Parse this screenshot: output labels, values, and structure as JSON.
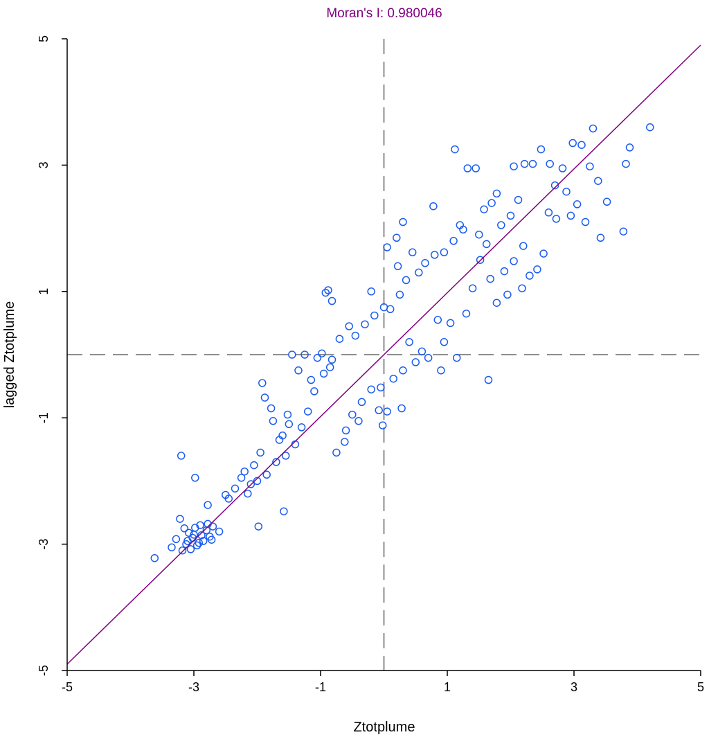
{
  "chart_data": {
    "type": "scatter",
    "title": "Moran's I: 0.980046",
    "xlabel": "Ztotplume",
    "ylabel": "lagged Ztotplume",
    "xlim": [
      -5,
      5
    ],
    "ylim": [
      -5,
      5
    ],
    "xticks": [
      -5,
      -3,
      -1,
      1,
      3,
      5
    ],
    "yticks": [
      -5,
      -3,
      -1,
      1,
      3,
      5
    ],
    "xtick_labels": [
      "-5",
      "-3",
      "-1",
      "1",
      "3",
      "5"
    ],
    "ytick_labels": [
      "-5",
      "-3",
      "-1",
      "1",
      "3",
      "5"
    ],
    "reference_lines": {
      "vertical_x": 0,
      "horizontal_y": 0,
      "style": "dashed"
    },
    "regression_line": {
      "slope": 0.98,
      "intercept": 0
    },
    "grid": false,
    "colors": {
      "points": "#1a5cf0",
      "line": "#800080",
      "title": "#800080",
      "ref": "#7f7f7f",
      "axis": "#000000"
    },
    "points": [
      [
        -3.62,
        -3.22
      ],
      [
        -3.35,
        -3.05
      ],
      [
        -3.28,
        -2.92
      ],
      [
        -3.22,
        -2.6
      ],
      [
        -3.18,
        -3.1
      ],
      [
        -3.15,
        -2.75
      ],
      [
        -3.1,
        -2.95
      ],
      [
        -3.05,
        -3.08
      ],
      [
        -3.0,
        -2.85
      ],
      [
        -2.95,
        -3.02
      ],
      [
        -2.9,
        -2.7
      ],
      [
        -2.85,
        -2.95
      ],
      [
        -2.8,
        -2.78
      ],
      [
        -2.75,
        -2.88
      ],
      [
        -2.7,
        -2.72
      ],
      [
        -2.6,
        -2.8
      ],
      [
        -2.92,
        -2.98
      ],
      [
        -3.08,
        -2.82
      ],
      [
        -2.98,
        -2.74
      ],
      [
        -2.72,
        -2.93
      ],
      [
        -3.12,
        -3.0
      ],
      [
        -2.88,
        -2.86
      ],
      [
        -2.78,
        -2.68
      ],
      [
        -3.02,
        -2.9
      ],
      [
        -3.2,
        -1.6
      ],
      [
        -2.98,
        -1.95
      ],
      [
        -2.5,
        -2.22
      ],
      [
        -2.78,
        -2.38
      ],
      [
        -1.98,
        -2.72
      ],
      [
        -1.58,
        -2.48
      ],
      [
        -2.45,
        -2.28
      ],
      [
        -2.35,
        -2.12
      ],
      [
        -2.2,
        -1.85
      ],
      [
        -2.1,
        -2.05
      ],
      [
        -1.92,
        -0.45
      ],
      [
        -1.88,
        -0.68
      ],
      [
        -1.75,
        -1.05
      ],
      [
        -1.6,
        -1.28
      ],
      [
        -1.78,
        -0.85
      ],
      [
        -1.52,
        -0.95
      ],
      [
        -1.35,
        -0.25
      ],
      [
        -1.25,
        0.0
      ],
      [
        -1.05,
        -0.05
      ],
      [
        -0.98,
        0.02
      ],
      [
        -0.82,
        -0.08
      ],
      [
        -1.45,
        0.0
      ],
      [
        -0.92,
        0.98
      ],
      [
        -0.88,
        1.02
      ],
      [
        -0.82,
        0.85
      ],
      [
        -0.55,
        0.45
      ],
      [
        -0.2,
        1.0
      ],
      [
        0.0,
        0.75
      ],
      [
        0.05,
        1.7
      ],
      [
        0.2,
        1.85
      ],
      [
        0.3,
        2.1
      ],
      [
        0.45,
        1.62
      ],
      [
        0.22,
        1.4
      ],
      [
        -0.08,
        -0.88
      ],
      [
        0.05,
        -0.9
      ],
      [
        -0.02,
        -1.12
      ],
      [
        0.28,
        -0.85
      ],
      [
        0.4,
        0.2
      ],
      [
        0.7,
        -0.05
      ],
      [
        0.9,
        -0.25
      ],
      [
        1.15,
        -0.05
      ],
      [
        1.65,
        -0.4
      ],
      [
        1.05,
        0.5
      ],
      [
        1.3,
        0.65
      ],
      [
        0.78,
        2.35
      ],
      [
        1.12,
        3.25
      ],
      [
        1.2,
        2.05
      ],
      [
        1.32,
        2.95
      ],
      [
        1.45,
        2.95
      ],
      [
        1.5,
        1.9
      ],
      [
        1.62,
        1.75
      ],
      [
        1.85,
        2.05
      ],
      [
        1.78,
        2.55
      ],
      [
        2.05,
        2.98
      ],
      [
        2.22,
        3.02
      ],
      [
        2.35,
        3.02
      ],
      [
        2.62,
        3.02
      ],
      [
        2.48,
        3.25
      ],
      [
        2.82,
        2.95
      ],
      [
        2.98,
        3.35
      ],
      [
        3.12,
        3.32
      ],
      [
        3.25,
        2.98
      ],
      [
        3.3,
        3.58
      ],
      [
        3.52,
        2.42
      ],
      [
        3.82,
        3.02
      ],
      [
        3.78,
        1.95
      ],
      [
        3.88,
        3.28
      ],
      [
        4.2,
        3.6
      ],
      [
        3.42,
        1.85
      ],
      [
        3.18,
        2.1
      ],
      [
        2.95,
        2.2
      ],
      [
        2.72,
        2.15
      ],
      [
        2.52,
        1.6
      ],
      [
        2.3,
        1.25
      ],
      [
        2.18,
        1.05
      ],
      [
        1.95,
        0.95
      ],
      [
        1.78,
        0.82
      ],
      [
        2.05,
        1.48
      ],
      [
        2.42,
        1.35
      ],
      [
        2.6,
        2.25
      ],
      [
        2.88,
        2.58
      ],
      [
        3.05,
        2.38
      ],
      [
        3.38,
        2.75
      ],
      [
        2.7,
        2.68
      ],
      [
        2.2,
        1.72
      ],
      [
        1.9,
        1.32
      ],
      [
        1.68,
        1.2
      ],
      [
        1.52,
        1.5
      ],
      [
        1.4,
        1.05
      ],
      [
        0.95,
        0.2
      ],
      [
        0.85,
        0.55
      ],
      [
        0.6,
        0.05
      ],
      [
        0.5,
        -0.12
      ],
      [
        0.3,
        -0.25
      ],
      [
        0.15,
        -0.38
      ],
      [
        -0.05,
        -0.52
      ],
      [
        -0.2,
        -0.55
      ],
      [
        -0.35,
        -0.75
      ],
      [
        -0.5,
        -0.95
      ],
      [
        -0.6,
        -1.2
      ],
      [
        -0.75,
        -1.55
      ],
      [
        -0.62,
        -1.38
      ],
      [
        -0.4,
        -1.05
      ],
      [
        -0.85,
        -0.2
      ],
      [
        -1.1,
        -0.58
      ],
      [
        -1.2,
        -0.9
      ],
      [
        -1.3,
        -1.15
      ],
      [
        -1.4,
        -1.42
      ],
      [
        -1.55,
        -1.6
      ],
      [
        -1.7,
        -1.7
      ],
      [
        -1.85,
        -1.9
      ],
      [
        -2.0,
        -2.0
      ],
      [
        -2.15,
        -2.2
      ],
      [
        -2.25,
        -1.95
      ],
      [
        -2.05,
        -1.75
      ],
      [
        -1.95,
        -1.55
      ],
      [
        -1.65,
        -1.35
      ],
      [
        -1.5,
        -1.1
      ],
      [
        -1.15,
        -0.4
      ],
      [
        -0.95,
        -0.3
      ],
      [
        -0.7,
        0.25
      ],
      [
        -0.45,
        0.3
      ],
      [
        -0.3,
        0.48
      ],
      [
        -0.15,
        0.62
      ],
      [
        0.1,
        0.72
      ],
      [
        0.25,
        0.95
      ],
      [
        0.35,
        1.18
      ],
      [
        0.55,
        1.3
      ],
      [
        0.65,
        1.45
      ],
      [
        0.8,
        1.58
      ],
      [
        0.95,
        1.62
      ],
      [
        1.1,
        1.8
      ],
      [
        1.25,
        1.98
      ],
      [
        1.58,
        2.3
      ],
      [
        1.7,
        2.4
      ],
      [
        2.0,
        2.2
      ],
      [
        2.12,
        2.45
      ]
    ]
  }
}
